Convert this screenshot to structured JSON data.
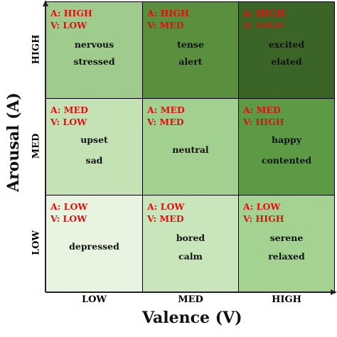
{
  "axes": {
    "x_title": "Valence (V)",
    "y_title": "Arousal (A)",
    "x_ticks": [
      "LOW",
      "MED",
      "HIGH"
    ],
    "y_ticks": [
      "HIGH",
      "MED",
      "LOW"
    ]
  },
  "cells": [
    {
      "a": "A: HIGH",
      "v": "V: LOW",
      "w1": "nervous",
      "w2": "stressed",
      "color": "#9fcc8c"
    },
    {
      "a": "A: HIGH",
      "v": "V: MED",
      "w1": "tense",
      "w2": "alert",
      "color": "#5a8f3e"
    },
    {
      "a": "A: HIGH",
      "v": "V: HIGH",
      "w1": "excited",
      "w2": "elated",
      "color": "#3a6527"
    },
    {
      "a": "A: MED",
      "v": "V: LOW",
      "w1": "upset",
      "w2": "sad",
      "color": "#c5e2b5"
    },
    {
      "a": "A: MED",
      "v": "V: MED",
      "w1": "neutral",
      "w2": "",
      "color": "#a2d08e"
    },
    {
      "a": "A: MED",
      "v": "V: HIGH",
      "w1": "happy",
      "w2": "contented",
      "color": "#5c9a45"
    },
    {
      "a": "A: LOW",
      "v": "V: LOW",
      "w1": "depressed",
      "w2": "",
      "color": "#e8f4e0"
    },
    {
      "a": "A: LOW",
      "v": "V: MED",
      "w1": "bored",
      "w2": "calm",
      "color": "#c9e5bb"
    },
    {
      "a": "A: LOW",
      "v": "V: HIGH",
      "w1": "serene",
      "w2": "relaxed",
      "color": "#a4d391"
    }
  ]
}
